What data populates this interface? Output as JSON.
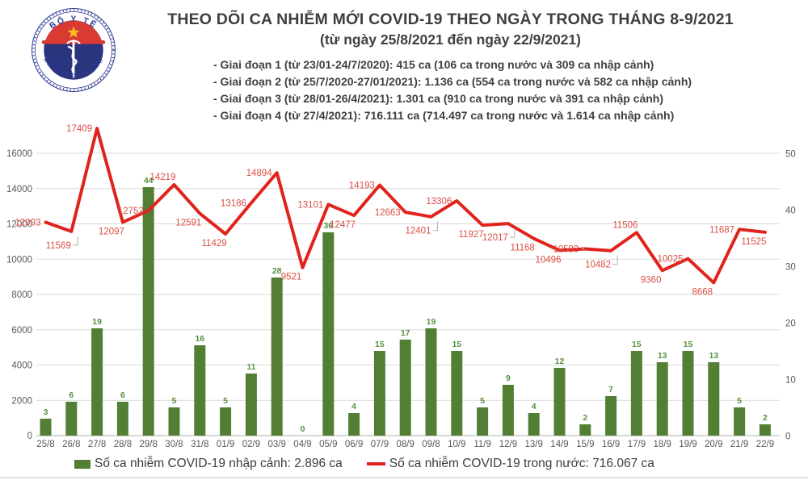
{
  "logo": {
    "top_text": "BỘ Y TẾ",
    "bottom_text": "MINISTRY OF HEALTH"
  },
  "header": {
    "title": "THEO DÕI CA NHIỄM MỚI COVID-19 THEO NGÀY TRONG THÁNG 8-9/2021",
    "subtitle": "(từ ngày 25/8/2021 đến ngày 22/9/2021)",
    "phases": [
      "- Giai đoạn 1 (từ 23/01-24/7/2020): 415 ca (106 ca trong nước và 309 ca nhập cảnh)",
      "- Giai đoạn 2 (từ 25/7/2020-27/01/2021): 1.136 ca (554 ca trong nước và 582 ca nhập cảnh)",
      "- Giai đoạn 3 (từ 28/01-26/4/2021): 1.301 ca (910 ca trong nước và 391 ca nhập cảnh)",
      "- Giai đoạn 4 (từ 27/4/2021): 716.111 ca (714.497 ca trong nước và 1.614 ca nhập cảnh)"
    ]
  },
  "chart_data": {
    "type": "bar",
    "subtype": "bar+line combo, dual axis",
    "categories": [
      "25/8",
      "26/8",
      "27/8",
      "28/8",
      "29/8",
      "30/8",
      "31/8",
      "01/9",
      "02/9",
      "03/9",
      "04/9",
      "05/9",
      "06/9",
      "07/9",
      "08/9",
      "09/8",
      "10/9",
      "11/9",
      "12/9",
      "13/9",
      "14/9",
      "15/9",
      "16/9",
      "17/9",
      "18/9",
      "19/9",
      "20/9",
      "21/9",
      "22/9"
    ],
    "series": [
      {
        "name": "Số ca nhiễm COVID-19 nhập cảnh",
        "type": "bar",
        "axis": "right",
        "values": [
          3,
          6,
          19,
          6,
          44,
          5,
          16,
          5,
          11,
          28,
          0,
          36,
          4,
          15,
          17,
          19,
          15,
          5,
          9,
          4,
          12,
          2,
          7,
          15,
          13,
          15,
          13,
          5,
          2
        ]
      },
      {
        "name": "Số ca nhiễm COVID-19 trong nước",
        "type": "line",
        "axis": "left",
        "values": [
          12093,
          11569,
          17409,
          12097,
          12752,
          14219,
          12591,
          11429,
          13186,
          14894,
          9521,
          13101,
          12477,
          14193,
          12663,
          12401,
          13306,
          11927,
          12017,
          11168,
          10496,
          10583,
          10482,
          11506,
          9360,
          10025,
          8668,
          11687,
          11525
        ],
        "label_pos": [
          "l",
          "bll",
          "l",
          "bl",
          "l",
          "al",
          "bl",
          "bl",
          "l",
          "l",
          "bl",
          "l",
          "bl",
          "l",
          "l",
          "bll",
          "l",
          "bl",
          "bll",
          "bl",
          "bl",
          "ll",
          "bll",
          "al",
          "bl",
          "l",
          "bl",
          "l",
          "bl"
        ]
      }
    ],
    "left_axis": {
      "min": 0,
      "max": 16000,
      "step": 2000
    },
    "right_axis": {
      "min": 0,
      "max": 50,
      "step": 10
    },
    "grid": true,
    "legend_position": "bottom"
  },
  "legend": {
    "bar_label": "Số ca nhiễm COVID-19 nhập cảnh: 2.896 ca",
    "line_label": "Số ca nhiễm COVID-19 trong nước: 716.067 ca"
  },
  "colors": {
    "bar": "#527f34",
    "bar_label": "#579140",
    "line": "#e0241c",
    "line_label": "#db4f46",
    "axis_text": "#595959",
    "grid": "#d9d9d9",
    "axis_line": "#bfbfbf",
    "leader": "#b0b0b0",
    "title_text": "#3f3f3f",
    "logo_blue": "#2b3990",
    "logo_disc": "#2a3580",
    "logo_red": "#d93a32",
    "logo_star": "#f8c01e"
  }
}
